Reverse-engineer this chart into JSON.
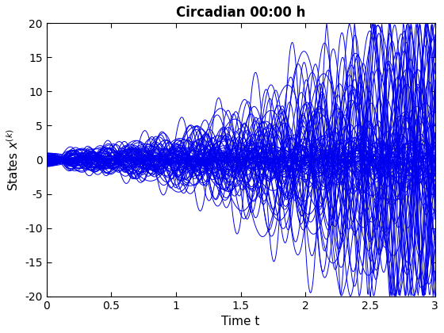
{
  "title": "Circadian 00:00 h",
  "xlabel": "Time t",
  "xlim": [
    0,
    3
  ],
  "ylim": [
    -20,
    20
  ],
  "xticks": [
    0,
    0.5,
    1,
    1.5,
    2,
    2.5,
    3
  ],
  "yticks": [
    -20,
    -15,
    -10,
    -5,
    0,
    5,
    10,
    15,
    20
  ],
  "line_color": "#0000EE",
  "line_width": 0.7,
  "num_trajectories": 80,
  "num_points": 600,
  "seed": 7,
  "background_color": "#FFFFFF",
  "title_fontsize": 12,
  "label_fontsize": 11,
  "tick_fontsize": 10
}
